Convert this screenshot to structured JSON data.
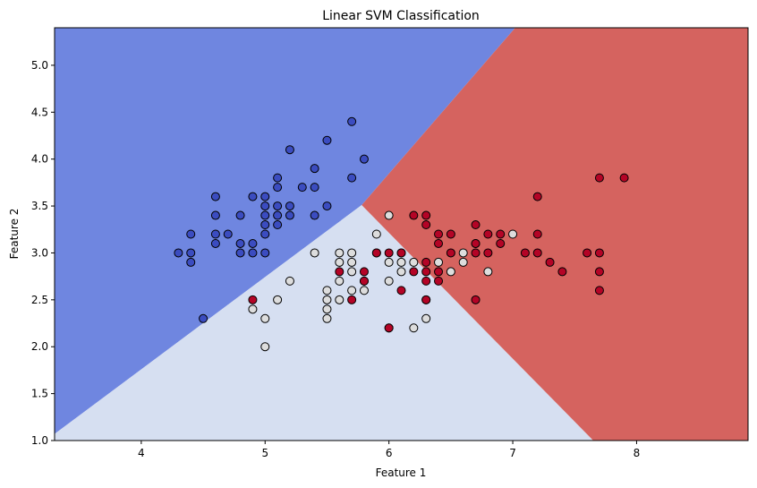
{
  "chart_data": {
    "type": "scatter",
    "title": "Linear SVM Classification",
    "xlabel": "Feature 1",
    "ylabel": "Feature 2",
    "xlim": [
      3.3,
      8.9
    ],
    "ylim": [
      1.0,
      5.4
    ],
    "xticks": [
      4,
      5,
      6,
      7,
      8
    ],
    "yticks": [
      1.0,
      1.5,
      2.0,
      2.5,
      3.0,
      3.5,
      4.0,
      4.5,
      5.0
    ],
    "grid": false,
    "legend": "none",
    "regions": [
      {
        "class": 0,
        "color": "#6f86e0",
        "polygon": [
          [
            3.3,
            1.07
          ],
          [
            5.78,
            3.51
          ],
          [
            7.02,
            5.4
          ],
          [
            3.3,
            5.4
          ]
        ]
      },
      {
        "class": 1,
        "color": "#d6dff1",
        "polygon": [
          [
            3.3,
            1.07
          ],
          [
            5.78,
            3.51
          ],
          [
            7.65,
            1.0
          ],
          [
            3.3,
            1.0
          ]
        ]
      },
      {
        "class": 2,
        "color": "#d5635f",
        "polygon": [
          [
            5.78,
            3.51
          ],
          [
            7.02,
            5.4
          ],
          [
            8.9,
            5.4
          ],
          [
            8.9,
            1.0
          ],
          [
            7.65,
            1.0
          ]
        ]
      }
    ],
    "class_colors": [
      "#3b4cc0",
      "#dddddd",
      "#b40426"
    ],
    "series": [
      {
        "class": 0,
        "points": [
          [
            4.3,
            3.0
          ],
          [
            4.4,
            3.0
          ],
          [
            4.4,
            3.2
          ],
          [
            4.4,
            2.9
          ],
          [
            4.5,
            2.3
          ],
          [
            4.6,
            3.1
          ],
          [
            4.6,
            3.4
          ],
          [
            4.6,
            3.6
          ],
          [
            4.6,
            3.2
          ],
          [
            4.7,
            3.2
          ],
          [
            4.8,
            3.4
          ],
          [
            4.8,
            3.0
          ],
          [
            4.8,
            3.1
          ],
          [
            4.9,
            3.0
          ],
          [
            4.9,
            3.1
          ],
          [
            4.9,
            3.6
          ],
          [
            5.0,
            3.6
          ],
          [
            5.0,
            3.4
          ],
          [
            5.0,
            3.0
          ],
          [
            5.0,
            3.3
          ],
          [
            5.0,
            3.5
          ],
          [
            5.0,
            3.2
          ],
          [
            5.1,
            3.5
          ],
          [
            5.1,
            3.8
          ],
          [
            5.1,
            3.7
          ],
          [
            5.1,
            3.3
          ],
          [
            5.1,
            3.4
          ],
          [
            5.2,
            3.5
          ],
          [
            5.2,
            3.4
          ],
          [
            5.2,
            4.1
          ],
          [
            5.3,
            3.7
          ],
          [
            5.4,
            3.9
          ],
          [
            5.4,
            3.7
          ],
          [
            5.4,
            3.4
          ],
          [
            5.5,
            4.2
          ],
          [
            5.5,
            3.5
          ],
          [
            5.7,
            4.4
          ],
          [
            5.7,
            3.8
          ],
          [
            5.8,
            4.0
          ]
        ]
      },
      {
        "class": 1,
        "points": [
          [
            4.9,
            2.4
          ],
          [
            5.0,
            2.0
          ],
          [
            5.0,
            2.3
          ],
          [
            5.1,
            2.5
          ],
          [
            5.2,
            2.7
          ],
          [
            5.4,
            3.0
          ],
          [
            5.5,
            2.3
          ],
          [
            5.5,
            2.4
          ],
          [
            5.5,
            2.5
          ],
          [
            5.5,
            2.6
          ],
          [
            5.6,
            2.5
          ],
          [
            5.6,
            2.7
          ],
          [
            5.6,
            2.9
          ],
          [
            5.6,
            3.0
          ],
          [
            5.7,
            2.6
          ],
          [
            5.7,
            2.8
          ],
          [
            5.7,
            2.9
          ],
          [
            5.7,
            3.0
          ],
          [
            5.8,
            2.6
          ],
          [
            5.8,
            2.7
          ],
          [
            5.9,
            3.2
          ],
          [
            5.9,
            3.0
          ],
          [
            6.0,
            2.2
          ],
          [
            6.0,
            2.7
          ],
          [
            6.0,
            2.9
          ],
          [
            6.0,
            3.4
          ],
          [
            6.1,
            2.8
          ],
          [
            6.1,
            2.9
          ],
          [
            6.1,
            3.0
          ],
          [
            6.2,
            2.2
          ],
          [
            6.2,
            2.9
          ],
          [
            6.3,
            2.3
          ],
          [
            6.3,
            2.5
          ],
          [
            6.4,
            2.9
          ],
          [
            6.5,
            2.8
          ],
          [
            6.6,
            2.9
          ],
          [
            6.6,
            3.0
          ],
          [
            6.7,
            3.1
          ],
          [
            6.8,
            2.8
          ],
          [
            7.0,
            3.2
          ]
        ]
      },
      {
        "class": 2,
        "points": [
          [
            4.9,
            2.5
          ],
          [
            5.6,
            2.8
          ],
          [
            5.7,
            2.5
          ],
          [
            5.8,
            2.7
          ],
          [
            5.8,
            2.8
          ],
          [
            5.9,
            3.0
          ],
          [
            6.0,
            2.2
          ],
          [
            6.0,
            3.0
          ],
          [
            6.1,
            2.6
          ],
          [
            6.1,
            3.0
          ],
          [
            6.2,
            2.8
          ],
          [
            6.2,
            3.4
          ],
          [
            6.3,
            2.5
          ],
          [
            6.3,
            2.7
          ],
          [
            6.3,
            2.8
          ],
          [
            6.3,
            2.9
          ],
          [
            6.3,
            3.3
          ],
          [
            6.3,
            3.4
          ],
          [
            6.4,
            2.7
          ],
          [
            6.4,
            2.8
          ],
          [
            6.4,
            3.1
          ],
          [
            6.4,
            3.2
          ],
          [
            6.5,
            3.0
          ],
          [
            6.5,
            3.2
          ],
          [
            6.7,
            2.5
          ],
          [
            6.7,
            3.0
          ],
          [
            6.7,
            3.1
          ],
          [
            6.7,
            3.3
          ],
          [
            6.8,
            3.0
          ],
          [
            6.8,
            3.2
          ],
          [
            6.9,
            3.1
          ],
          [
            6.9,
            3.2
          ],
          [
            7.1,
            3.0
          ],
          [
            7.2,
            3.0
          ],
          [
            7.2,
            3.2
          ],
          [
            7.2,
            3.6
          ],
          [
            7.3,
            2.9
          ],
          [
            7.4,
            2.8
          ],
          [
            7.6,
            3.0
          ],
          [
            7.7,
            2.6
          ],
          [
            7.7,
            2.8
          ],
          [
            7.7,
            3.0
          ],
          [
            7.7,
            3.8
          ],
          [
            7.9,
            3.8
          ]
        ]
      }
    ]
  }
}
